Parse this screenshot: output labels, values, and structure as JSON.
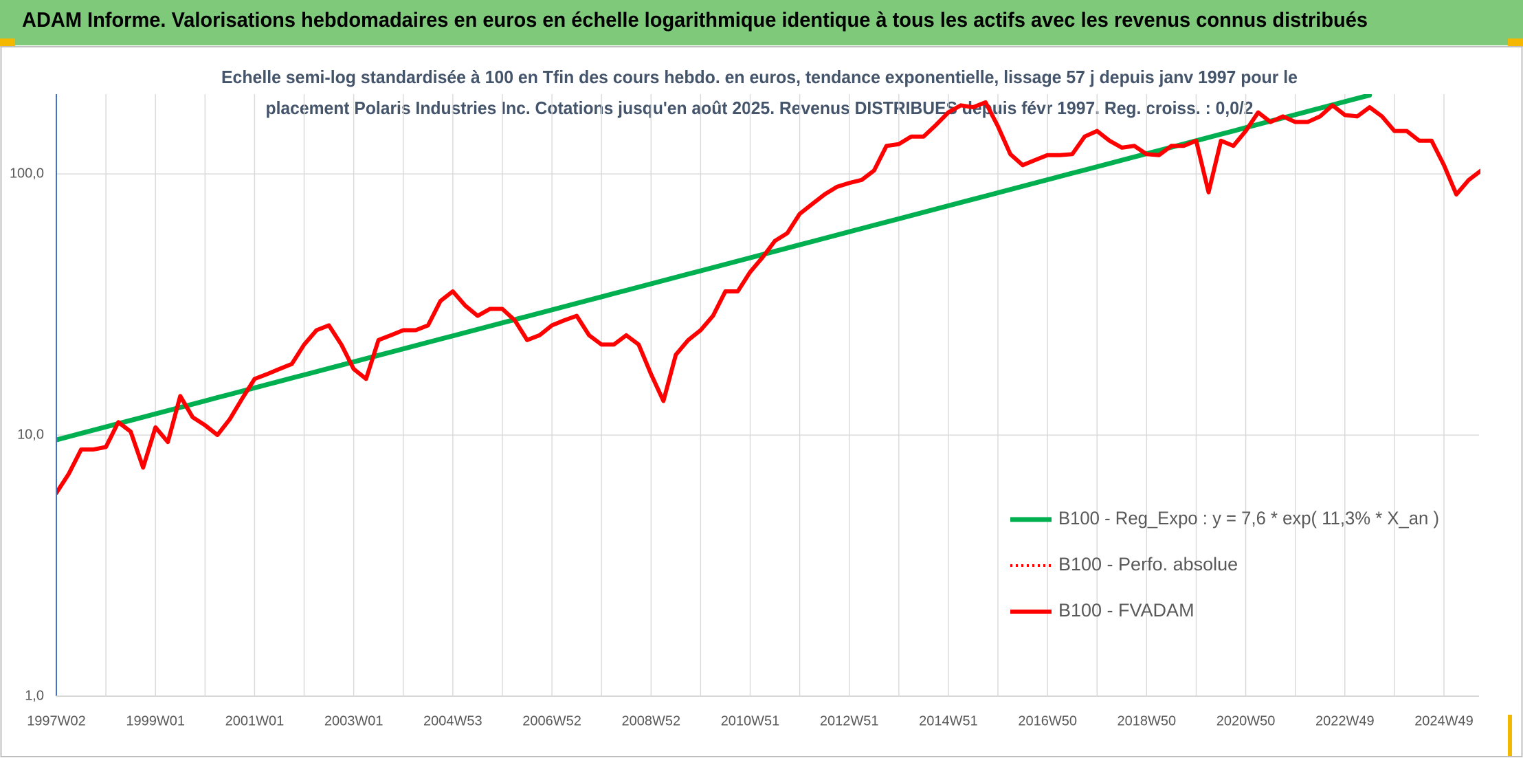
{
  "chart_data": {
    "type": "line",
    "title": "ADAM Informe. Valorisations hebdomadaires en euros en échelle logarithmique identique à tous les actifs avec les revenus connus distribués",
    "subtitle": [
      "Echelle semi-log standardisée à 100 en Tfin des cours hebdo. en euros, tendance exponentielle, lissage 57 j depuis janv 1997 pour le",
      "placement Polaris Industries Inc. Cotations jusqu'en août 2025. Revenus DISTRIBUES depuis févr 1997. Reg. croiss. : 0,0/2"
    ],
    "log_scale": true,
    "grid": true,
    "legend": "lower right",
    "ylim": [
      1,
      202
    ],
    "yticks": [
      {
        "value": 1,
        "label": "1,0"
      },
      {
        "value": 10,
        "label": "10,0"
      },
      {
        "value": 100,
        "label": "100,0"
      }
    ],
    "categories": [
      "1997W02",
      null,
      null,
      null,
      null,
      null,
      null,
      null,
      "1999W01",
      null,
      null,
      null,
      null,
      null,
      null,
      null,
      "2001W01",
      null,
      null,
      null,
      null,
      null,
      null,
      null,
      "2003W01",
      null,
      null,
      null,
      null,
      null,
      null,
      null,
      "2004W53",
      null,
      null,
      null,
      null,
      null,
      null,
      null,
      "2006W52",
      null,
      null,
      null,
      null,
      null,
      null,
      null,
      "2008W52",
      null,
      null,
      null,
      null,
      null,
      null,
      null,
      "2010W51",
      null,
      null,
      null,
      null,
      null,
      null,
      null,
      "2012W51",
      null,
      null,
      null,
      null,
      null,
      null,
      null,
      "2014W51",
      null,
      null,
      null,
      null,
      null,
      null,
      null,
      "2016W50",
      null,
      null,
      null,
      null,
      null,
      null,
      null,
      "2018W50",
      null,
      null,
      null,
      null,
      null,
      null,
      null,
      "2020W50",
      null,
      null,
      null,
      null,
      null,
      null,
      null,
      "2022W49",
      null,
      null,
      null,
      null,
      null,
      null,
      null,
      "2024W49",
      null,
      null,
      null
    ],
    "series": [
      {
        "name": "B100 - Reg_Expo : y = 7,6 * exp( 11,3% *  X_an )",
        "color": "#00b050",
        "style": "solid",
        "values": [
          9.58,
          9.86,
          10.15,
          10.44,
          10.75,
          11.06,
          11.38,
          11.71,
          12.05,
          12.4,
          12.76,
          13.13,
          13.51,
          13.91,
          14.31,
          14.73,
          15.16,
          15.6,
          16.05,
          16.52,
          17.0,
          17.49,
          18.0,
          18.52,
          19.06,
          19.62,
          20.19,
          20.77,
          21.38,
          22.0,
          22.64,
          23.3,
          23.97,
          24.67,
          25.39,
          26.13,
          26.89,
          27.67,
          28.47,
          29.3,
          30.16,
          31.03,
          31.94,
          32.87,
          33.82,
          34.81,
          35.82,
          36.86,
          37.93,
          39.04,
          40.17,
          41.34,
          42.54,
          43.78,
          45.06,
          46.37,
          47.72,
          49.1,
          50.53,
          52.0,
          53.52,
          55.07,
          56.68,
          58.33,
          60.02,
          61.77,
          63.57,
          65.42,
          67.32,
          69.28,
          71.29,
          73.37,
          75.5,
          77.7,
          79.96,
          82.29,
          84.68,
          87.15,
          89.68,
          92.29,
          94.98,
          97.74,
          100.6,
          103.5,
          106.5,
          109.6,
          112.8,
          116.1,
          119.5,
          122.9,
          126.5,
          130.2,
          134.0,
          137.9,
          141.9,
          146.0,
          150.3,
          154.7,
          159.2,
          163.8,
          168.6,
          173.5,
          178.5,
          183.7,
          189.1,
          194.6,
          200.2,
          null,
          null,
          null,
          null,
          null,
          null,
          null,
          null,
          null
        ]
      },
      {
        "name": "B100 - Perfo. absolue",
        "color": "#ff0000",
        "style": "dotted",
        "values": [
          6.0,
          7.1,
          8.8,
          8.8,
          9.0,
          11.2,
          10.3,
          7.5,
          10.7,
          9.4,
          14.1,
          11.7,
          10.9,
          10.0,
          11.5,
          13.8,
          16.4,
          17.1,
          17.9,
          18.7,
          22.2,
          25.2,
          26.3,
          22.2,
          17.9,
          16.4,
          23.1,
          24.1,
          25.2,
          25.2,
          26.3,
          32.6,
          35.5,
          31.3,
          28.6,
          30.4,
          30.4,
          27.5,
          23.1,
          24.1,
          26.3,
          27.5,
          28.6,
          24.1,
          22.2,
          22.2,
          24.1,
          22.2,
          17.1,
          13.5,
          20.3,
          23.1,
          25.2,
          28.6,
          35.5,
          35.5,
          42.1,
          47.9,
          55.4,
          59.3,
          70.3,
          76.6,
          83.4,
          89.2,
          92.3,
          94.8,
          103,
          128,
          130,
          139,
          139,
          154,
          172,
          183,
          180,
          188,
          152,
          119,
          108,
          113,
          118,
          118,
          119,
          139,
          146,
          134,
          126,
          128,
          119,
          118,
          128,
          128,
          134,
          85,
          134,
          128,
          146,
          172,
          158,
          166,
          158,
          158,
          166,
          183,
          168,
          166,
          180,
          166,
          146,
          146,
          134,
          134,
          108,
          83.4,
          94.8,
          103
        ]
      },
      {
        "name": "B100 - FVADAM",
        "color": "#ff0000",
        "style": "solid",
        "values": [
          6.0,
          7.1,
          8.8,
          8.8,
          9.0,
          11.2,
          10.3,
          7.5,
          10.7,
          9.4,
          14.1,
          11.7,
          10.9,
          10.0,
          11.5,
          13.8,
          16.4,
          17.1,
          17.9,
          18.7,
          22.2,
          25.2,
          26.3,
          22.2,
          17.9,
          16.4,
          23.1,
          24.1,
          25.2,
          25.2,
          26.3,
          32.6,
          35.5,
          31.3,
          28.6,
          30.4,
          30.4,
          27.5,
          23.1,
          24.1,
          26.3,
          27.5,
          28.6,
          24.1,
          22.2,
          22.2,
          24.1,
          22.2,
          17.1,
          13.5,
          20.3,
          23.1,
          25.2,
          28.6,
          35.5,
          35.5,
          42.1,
          47.9,
          55.4,
          59.3,
          70.3,
          76.6,
          83.4,
          89.2,
          92.3,
          94.8,
          103,
          128,
          130,
          139,
          139,
          154,
          172,
          183,
          180,
          188,
          152,
          119,
          108,
          113,
          118,
          118,
          119,
          139,
          146,
          134,
          126,
          128,
          119,
          118,
          128,
          128,
          134,
          85,
          134,
          128,
          146,
          172,
          158,
          166,
          158,
          158,
          166,
          183,
          168,
          166,
          180,
          166,
          146,
          146,
          134,
          134,
          108,
          83.4,
          94.8,
          103
        ]
      }
    ]
  }
}
